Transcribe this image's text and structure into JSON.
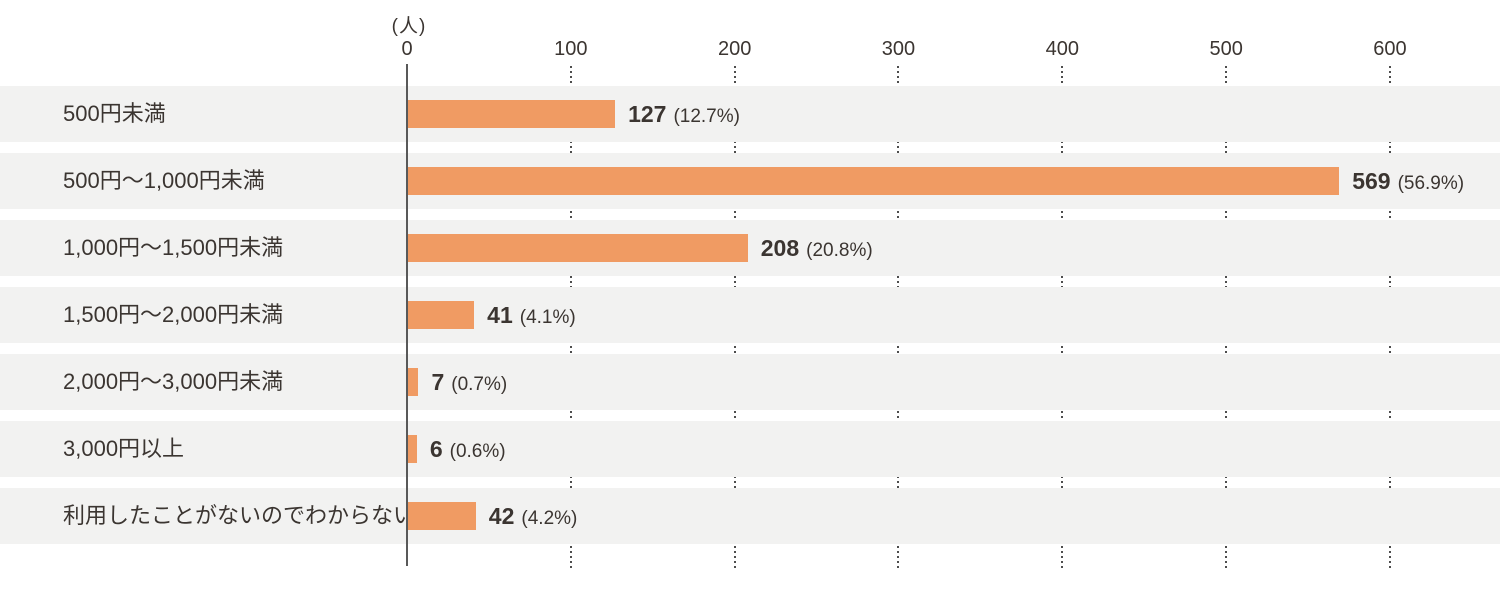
{
  "chart_data": {
    "type": "bar",
    "orientation": "horizontal",
    "title": "",
    "unit_label": "(人)",
    "categories": [
      "500円未満",
      "500円～1,000円未満",
      "1,000円～1,500円未満",
      "1,500円～2,000円未満",
      "2,000円～3,000円未満",
      "3,000円以上",
      "利用したことがないのでわからない"
    ],
    "values": [
      127,
      569,
      208,
      41,
      7,
      6,
      42
    ],
    "percent_labels": [
      "(12.7%)",
      "(56.9%)",
      "(20.8%)",
      "(4.1%)",
      "(0.7%)",
      "(0.6%)",
      "(4.2%)"
    ],
    "x_ticks": [
      0,
      100,
      200,
      300,
      400,
      500,
      600
    ],
    "xlim": [
      0,
      667
    ],
    "xlabel": "",
    "ylabel": "",
    "grid": "vertical-dotted-between-rows",
    "legend": "none",
    "colors": {
      "bar": "#F09B63",
      "row_band": "#F2F2F1",
      "axis_line": "#595959",
      "grid_dot": "#4D4D4D",
      "text": "#3B3531"
    }
  }
}
